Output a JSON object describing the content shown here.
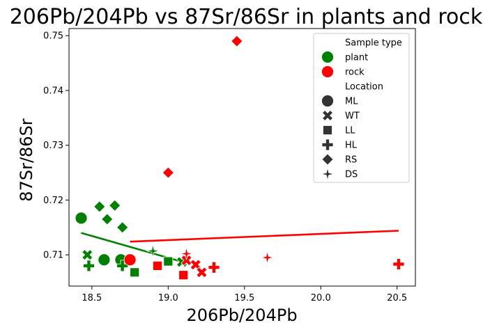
{
  "chart_data": {
    "type": "scatter",
    "title": "206Pb/204Pb vs 87Sr/86Sr in plants and rock",
    "xlabel": "206Pb/204Pb",
    "ylabel": "87Sr/86Sr",
    "xlim": [
      18.35,
      20.62
    ],
    "ylim": [
      0.7043,
      0.7513
    ],
    "xticks": [
      {
        "value": 18.5,
        "label": "18.5"
      },
      {
        "value": 19.0,
        "label": "19.0"
      },
      {
        "value": 19.5,
        "label": "19.5"
      },
      {
        "value": 20.0,
        "label": "20.0"
      },
      {
        "value": 20.5,
        "label": "20.5"
      }
    ],
    "yticks": [
      {
        "value": 0.71,
        "label": "0.71"
      },
      {
        "value": 0.72,
        "label": "0.72"
      },
      {
        "value": 0.73,
        "label": "0.73"
      },
      {
        "value": 0.74,
        "label": "0.74"
      },
      {
        "value": 0.75,
        "label": "0.75"
      }
    ],
    "grid": false,
    "legend": {
      "placement": "top-right",
      "hue_title": "Sample type",
      "hue_entries": [
        {
          "label": "plant",
          "color": "#008000"
        },
        {
          "label": "rock",
          "color": "#ff0000"
        }
      ],
      "style_title": "Location",
      "style_entries": [
        {
          "label": "ML",
          "marker": "circle"
        },
        {
          "label": "WT",
          "marker": "x"
        },
        {
          "label": "LL",
          "marker": "square"
        },
        {
          "label": "HL",
          "marker": "plus"
        },
        {
          "label": "RS",
          "marker": "diamond"
        },
        {
          "label": "DS",
          "marker": "star4"
        }
      ]
    },
    "series": [
      {
        "sample_type": "plant",
        "color": "#008000",
        "points": [
          {
            "x": 18.43,
            "y": 0.7167,
            "marker": "circle"
          },
          {
            "x": 18.58,
            "y": 0.7091,
            "marker": "circle"
          },
          {
            "x": 18.69,
            "y": 0.7091,
            "marker": "circle"
          },
          {
            "x": 18.47,
            "y": 0.71,
            "marker": "x"
          },
          {
            "x": 19.09,
            "y": 0.7087,
            "marker": "x"
          },
          {
            "x": 18.78,
            "y": 0.7068,
            "marker": "square"
          },
          {
            "x": 19.0,
            "y": 0.7088,
            "marker": "square"
          },
          {
            "x": 18.48,
            "y": 0.708,
            "marker": "plus"
          },
          {
            "x": 18.7,
            "y": 0.708,
            "marker": "plus"
          },
          {
            "x": 18.55,
            "y": 0.7188,
            "marker": "diamond"
          },
          {
            "x": 18.65,
            "y": 0.719,
            "marker": "diamond"
          },
          {
            "x": 18.6,
            "y": 0.7165,
            "marker": "diamond"
          },
          {
            "x": 18.7,
            "y": 0.715,
            "marker": "diamond"
          },
          {
            "x": 18.9,
            "y": 0.7107,
            "marker": "star4"
          }
        ],
        "regression": {
          "x": [
            18.43,
            19.12
          ],
          "y": [
            0.714,
            0.7085
          ]
        }
      },
      {
        "sample_type": "rock",
        "color": "#ff0000",
        "points": [
          {
            "x": 18.75,
            "y": 0.7091,
            "marker": "circle"
          },
          {
            "x": 19.12,
            "y": 0.709,
            "marker": "x"
          },
          {
            "x": 19.18,
            "y": 0.7082,
            "marker": "x"
          },
          {
            "x": 19.22,
            "y": 0.7068,
            "marker": "x"
          },
          {
            "x": 18.93,
            "y": 0.708,
            "marker": "square"
          },
          {
            "x": 19.1,
            "y": 0.7063,
            "marker": "square"
          },
          {
            "x": 19.3,
            "y": 0.7077,
            "marker": "plus"
          },
          {
            "x": 20.51,
            "y": 0.7083,
            "marker": "plus"
          },
          {
            "x": 19.0,
            "y": 0.725,
            "marker": "diamond"
          },
          {
            "x": 19.45,
            "y": 0.749,
            "marker": "diamond"
          },
          {
            "x": 19.12,
            "y": 0.7102,
            "marker": "star4"
          },
          {
            "x": 19.65,
            "y": 0.7095,
            "marker": "star4"
          }
        ],
        "regression": {
          "x": [
            18.75,
            20.51
          ],
          "y": [
            0.7124,
            0.7144
          ]
        }
      }
    ]
  }
}
